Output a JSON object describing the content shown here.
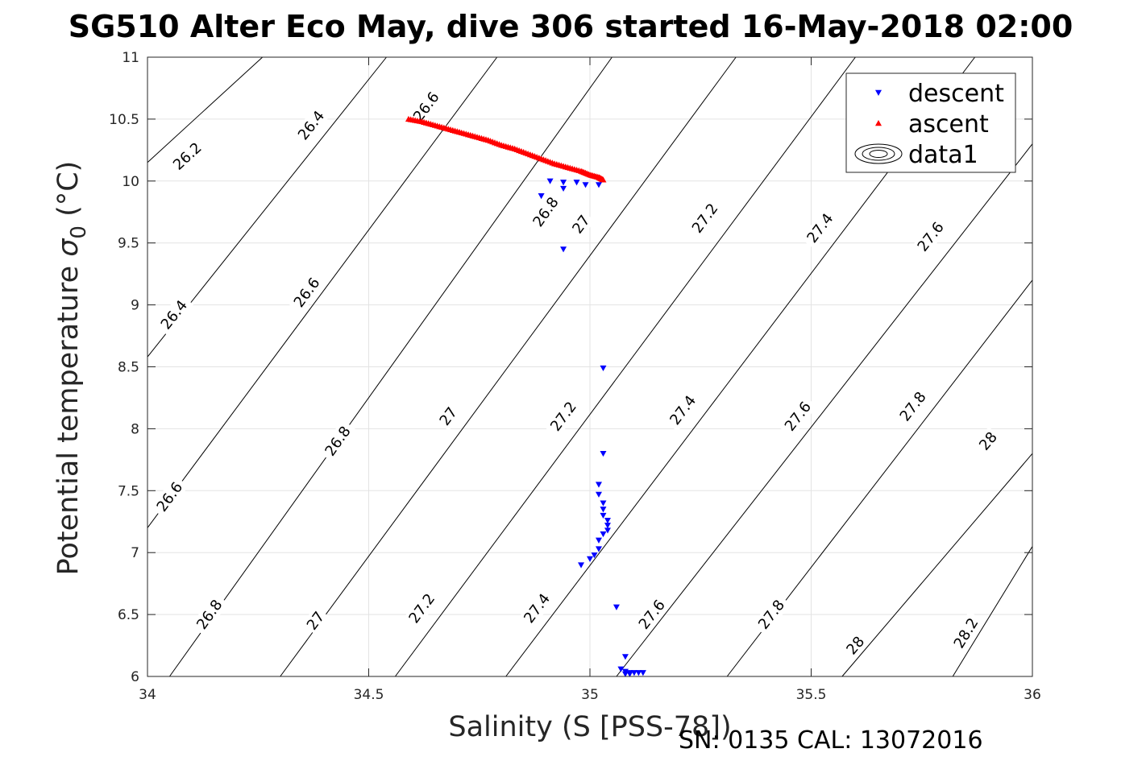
{
  "chart_data": {
    "type": "scatter",
    "title": "SG510 Alter Eco May, dive 306 started 16-May-2018 02:00",
    "xlabel": "Salinity (S [PSS-78])",
    "ylabel_text": "Potential temperature ",
    "ylabel_symbol": "σ",
    "ylabel_sub": "0",
    "ylabel_unit": " (°C)",
    "xlim": [
      34,
      36
    ],
    "ylim": [
      6,
      11
    ],
    "xticks": [
      34,
      34.5,
      35,
      35.5,
      36
    ],
    "xtick_labels": [
      "34",
      "34.5",
      "35",
      "35.5",
      "36"
    ],
    "yticks": [
      6,
      6.5,
      7,
      7.5,
      8,
      8.5,
      9,
      9.5,
      10,
      10.5,
      11
    ],
    "ytick_labels": [
      "6",
      "6.5",
      "7",
      "7.5",
      "8",
      "8.5",
      "9",
      "9.5",
      "10",
      "10.5",
      "11"
    ],
    "grid": true,
    "legend_position": "top-right",
    "annotation": "SN: 0135  CAL: 13072016",
    "contours": {
      "name": "data1",
      "lines": [
        {
          "level": 26.2,
          "points": [
            [
              34.0,
              10.15
            ],
            [
              34.26,
              11.0
            ]
          ],
          "label": {
            "text": "26.2",
            "x": 34.09,
            "y": 10.2
          }
        },
        {
          "level": 26.4,
          "points": [
            [
              34.0,
              8.58
            ],
            [
              34.54,
              11.0
            ]
          ],
          "label": {
            "text": "26.4",
            "x": 34.37,
            "y": 10.45
          }
        },
        {
          "level": 26.4,
          "points": [
            [
              34.0,
              8.58
            ],
            [
              34.54,
              11.0
            ]
          ],
          "label": {
            "text": "26.4",
            "x": 34.06,
            "y": 8.92
          }
        },
        {
          "level": 26.6,
          "points": [
            [
              34.0,
              7.2
            ],
            [
              34.79,
              11.0
            ]
          ],
          "label": {
            "text": "26.6",
            "x": 34.63,
            "y": 10.6
          }
        },
        {
          "level": 26.6,
          "points": [
            [
              34.0,
              7.2
            ],
            [
              34.79,
              11.0
            ]
          ],
          "label": {
            "text": "26.6",
            "x": 34.36,
            "y": 9.1
          }
        },
        {
          "level": 26.6,
          "points": [
            [
              34.0,
              7.2
            ],
            [
              34.79,
              11.0
            ]
          ],
          "label": {
            "text": "26.6",
            "x": 34.05,
            "y": 7.45
          }
        },
        {
          "level": 26.8,
          "points": [
            [
              34.05,
              6.0
            ],
            [
              35.05,
              11.0
            ]
          ],
          "label": {
            "text": "26.8",
            "x": 34.9,
            "y": 9.75
          }
        },
        {
          "level": 26.8,
          "points": [
            [
              34.05,
              6.0
            ],
            [
              35.05,
              11.0
            ]
          ],
          "label": {
            "text": "26.8",
            "x": 34.43,
            "y": 7.9
          }
        },
        {
          "level": 26.8,
          "points": [
            [
              34.05,
              6.0
            ],
            [
              35.05,
              11.0
            ]
          ],
          "label": {
            "text": "26.8",
            "x": 34.14,
            "y": 6.5
          }
        },
        {
          "level": 27.0,
          "points": [
            [
              34.3,
              6.0
            ],
            [
              35.33,
              11.0
            ]
          ],
          "label": {
            "text": "27",
            "x": 34.98,
            "y": 9.65
          }
        },
        {
          "level": 27.0,
          "points": [
            [
              34.3,
              6.0
            ],
            [
              35.33,
              11.0
            ]
          ],
          "label": {
            "text": "27",
            "x": 34.68,
            "y": 8.1
          }
        },
        {
          "level": 27.0,
          "points": [
            [
              34.3,
              6.0
            ],
            [
              35.33,
              11.0
            ]
          ],
          "label": {
            "text": "27",
            "x": 34.38,
            "y": 6.45
          }
        },
        {
          "level": 27.2,
          "points": [
            [
              34.56,
              6.0
            ],
            [
              35.6,
              11.0
            ]
          ],
          "label": {
            "text": "27.2",
            "x": 35.26,
            "y": 9.7
          }
        },
        {
          "level": 27.2,
          "points": [
            [
              34.56,
              6.0
            ],
            [
              35.6,
              11.0
            ]
          ],
          "label": {
            "text": "27.2",
            "x": 34.94,
            "y": 8.1
          }
        },
        {
          "level": 27.2,
          "points": [
            [
              34.56,
              6.0
            ],
            [
              35.6,
              11.0
            ]
          ],
          "label": {
            "text": "27.2",
            "x": 34.62,
            "y": 6.55
          }
        },
        {
          "level": 27.4,
          "points": [
            [
              34.81,
              6.0
            ],
            [
              35.87,
              11.0
            ]
          ],
          "label": {
            "text": "27.4",
            "x": 35.52,
            "y": 9.62
          }
        },
        {
          "level": 27.4,
          "points": [
            [
              34.81,
              6.0
            ],
            [
              35.87,
              11.0
            ]
          ],
          "label": {
            "text": "27.4",
            "x": 35.21,
            "y": 8.15
          }
        },
        {
          "level": 27.4,
          "points": [
            [
              34.81,
              6.0
            ],
            [
              35.87,
              11.0
            ]
          ],
          "label": {
            "text": "27.4",
            "x": 34.88,
            "y": 6.55
          }
        },
        {
          "level": 27.6,
          "points": [
            [
              35.06,
              6.0
            ],
            [
              36.0,
              10.3
            ]
          ],
          "label": {
            "text": "27.6",
            "x": 35.77,
            "y": 9.55
          }
        },
        {
          "level": 27.6,
          "points": [
            [
              35.06,
              6.0
            ],
            [
              36.0,
              10.3
            ]
          ],
          "label": {
            "text": "27.6",
            "x": 35.47,
            "y": 8.1
          }
        },
        {
          "level": 27.6,
          "points": [
            [
              35.06,
              6.0
            ],
            [
              36.0,
              10.3
            ]
          ],
          "label": {
            "text": "27.6",
            "x": 35.14,
            "y": 6.5
          }
        },
        {
          "level": 27.8,
          "points": [
            [
              35.31,
              6.0
            ],
            [
              36.0,
              9.2
            ]
          ],
          "label": {
            "text": "27.8",
            "x": 35.73,
            "y": 8.18
          }
        },
        {
          "level": 27.8,
          "points": [
            [
              35.31,
              6.0
            ],
            [
              36.0,
              9.2
            ]
          ],
          "label": {
            "text": "27.8",
            "x": 35.41,
            "y": 6.5
          }
        },
        {
          "level": 28.0,
          "points": [
            [
              35.57,
              6.0
            ],
            [
              36.0,
              7.8
            ]
          ],
          "label": {
            "text": "28",
            "x": 35.9,
            "y": 7.9
          }
        },
        {
          "level": 28.0,
          "points": [
            [
              35.57,
              6.0
            ],
            [
              36.0,
              7.8
            ]
          ],
          "label": {
            "text": "28",
            "x": 35.6,
            "y": 6.25
          }
        },
        {
          "level": 28.2,
          "points": [
            [
              35.82,
              6.0
            ],
            [
              36.0,
              7.05
            ]
          ],
          "label": {
            "text": "28.2",
            "x": 35.85,
            "y": 6.35
          }
        }
      ]
    },
    "series": [
      {
        "name": "descent",
        "marker": "triangle-down",
        "color": "#0000ff",
        "points": [
          [
            34.91,
            10.0
          ],
          [
            34.94,
            9.99
          ],
          [
            34.97,
            9.99
          ],
          [
            34.99,
            9.97
          ],
          [
            35.02,
            9.97
          ],
          [
            34.94,
            9.94
          ],
          [
            34.89,
            9.88
          ],
          [
            34.94,
            9.45
          ],
          [
            35.03,
            8.49
          ],
          [
            35.03,
            7.8
          ],
          [
            35.02,
            7.55
          ],
          [
            35.02,
            7.47
          ],
          [
            35.03,
            7.4
          ],
          [
            35.03,
            7.35
          ],
          [
            35.03,
            7.3
          ],
          [
            35.04,
            7.26
          ],
          [
            35.04,
            7.22
          ],
          [
            35.04,
            7.18
          ],
          [
            35.03,
            7.15
          ],
          [
            35.02,
            7.1
          ],
          [
            35.02,
            7.03
          ],
          [
            35.01,
            6.98
          ],
          [
            35.0,
            6.95
          ],
          [
            34.98,
            6.9
          ],
          [
            35.06,
            6.56
          ],
          [
            35.08,
            6.16
          ],
          [
            35.07,
            6.06
          ],
          [
            35.08,
            6.04
          ],
          [
            35.09,
            6.03
          ],
          [
            35.1,
            6.03
          ],
          [
            35.11,
            6.03
          ],
          [
            35.12,
            6.03
          ],
          [
            35.08,
            6.02
          ],
          [
            35.09,
            6.02
          ]
        ]
      },
      {
        "name": "ascent",
        "marker": "triangle-up",
        "color": "#ff0000",
        "points": [
          [
            34.59,
            10.5
          ],
          [
            34.62,
            10.48
          ],
          [
            34.65,
            10.45
          ],
          [
            34.68,
            10.42
          ],
          [
            34.71,
            10.39
          ],
          [
            34.74,
            10.36
          ],
          [
            34.77,
            10.33
          ],
          [
            34.8,
            10.29
          ],
          [
            34.83,
            10.26
          ],
          [
            34.86,
            10.22
          ],
          [
            34.89,
            10.18
          ],
          [
            34.92,
            10.14
          ],
          [
            34.95,
            10.11
          ],
          [
            34.98,
            10.08
          ],
          [
            35.0,
            10.05
          ],
          [
            35.02,
            10.03
          ],
          [
            35.03,
            10.01
          ]
        ]
      }
    ],
    "legend": [
      {
        "name": "descent",
        "marker": "triangle-down",
        "color": "#0000ff"
      },
      {
        "name": "ascent",
        "marker": "triangle-up",
        "color": "#ff0000"
      },
      {
        "name": "data1",
        "marker": "contour"
      }
    ]
  }
}
